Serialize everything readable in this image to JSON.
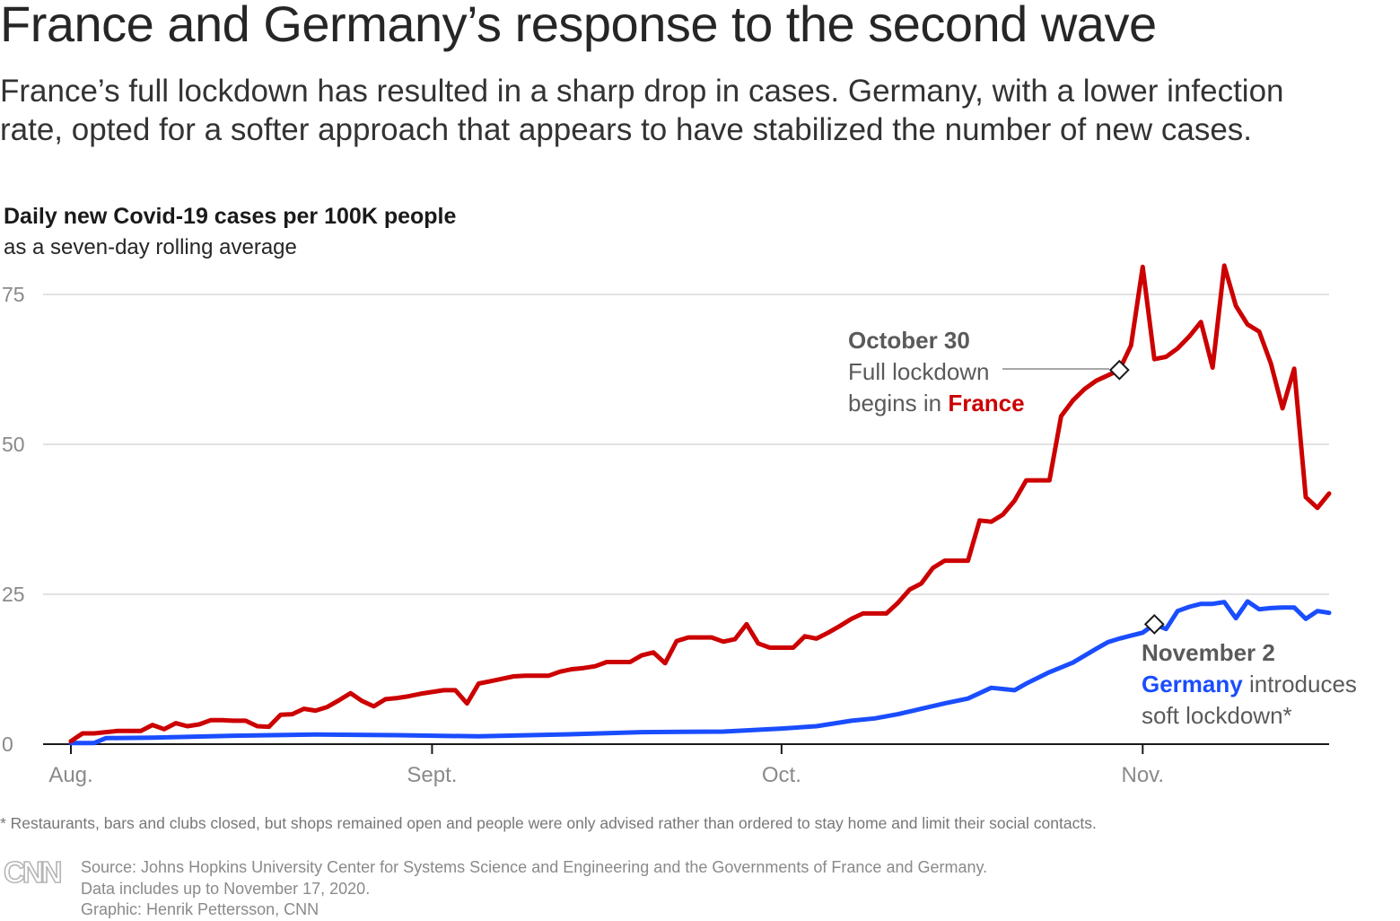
{
  "header": {
    "title": "France and Germany’s response to the second wave",
    "subtitle": "France’s full lockdown has resulted in a sharp drop in cases. Germany, with a lower infection rate, opted for a softer approach that appears to have stabilized the number of new cases."
  },
  "chart_data": {
    "type": "line",
    "title": "Daily new Covid-19 cases per 100K people",
    "subtitle": "as a seven-day rolling average",
    "x_start": "2020-08-01",
    "x_end": "2020-11-17",
    "x_tick_labels": [
      "Aug.",
      "Sept.",
      "Oct.",
      "Nov."
    ],
    "x_tick_dates": [
      "2020-08-01",
      "2020-09-01",
      "2020-10-01",
      "2020-11-01"
    ],
    "y_ticks": [
      0,
      25,
      50,
      75
    ],
    "ylim": [
      0,
      80
    ],
    "grid": true,
    "series": [
      {
        "name": "France",
        "color": "#cc0000",
        "x": [
          "2020-08-01",
          "2020-08-02",
          "2020-08-03",
          "2020-08-04",
          "2020-08-05",
          "2020-08-06",
          "2020-08-07",
          "2020-08-08",
          "2020-08-09",
          "2020-08-10",
          "2020-08-11",
          "2020-08-12",
          "2020-08-13",
          "2020-08-14",
          "2020-08-15",
          "2020-08-16",
          "2020-08-17",
          "2020-08-18",
          "2020-08-19",
          "2020-08-20",
          "2020-08-21",
          "2020-08-22",
          "2020-08-23",
          "2020-08-24",
          "2020-08-25",
          "2020-08-26",
          "2020-08-27",
          "2020-08-28",
          "2020-08-29",
          "2020-08-30",
          "2020-08-31",
          "2020-09-01",
          "2020-09-02",
          "2020-09-03",
          "2020-09-04",
          "2020-09-05",
          "2020-09-06",
          "2020-09-07",
          "2020-09-08",
          "2020-09-09",
          "2020-09-10",
          "2020-09-11",
          "2020-09-12",
          "2020-09-13",
          "2020-09-14",
          "2020-09-15",
          "2020-09-16",
          "2020-09-17",
          "2020-09-18",
          "2020-09-19",
          "2020-09-20",
          "2020-09-21",
          "2020-09-22",
          "2020-09-23",
          "2020-09-24",
          "2020-09-25",
          "2020-09-26",
          "2020-09-27",
          "2020-09-28",
          "2020-09-29",
          "2020-09-30",
          "2020-10-01",
          "2020-10-02",
          "2020-10-03",
          "2020-10-04",
          "2020-10-05",
          "2020-10-06",
          "2020-10-07",
          "2020-10-08",
          "2020-10-09",
          "2020-10-10",
          "2020-10-11",
          "2020-10-12",
          "2020-10-13",
          "2020-10-14",
          "2020-10-15",
          "2020-10-16",
          "2020-10-17",
          "2020-10-18",
          "2020-10-19",
          "2020-10-20",
          "2020-10-21",
          "2020-10-22",
          "2020-10-23",
          "2020-10-24",
          "2020-10-25",
          "2020-10-26",
          "2020-10-27",
          "2020-10-28",
          "2020-10-29",
          "2020-10-30",
          "2020-10-31",
          "2020-11-01",
          "2020-11-02",
          "2020-11-03",
          "2020-11-04",
          "2020-11-05",
          "2020-11-06",
          "2020-11-07",
          "2020-11-08",
          "2020-11-09",
          "2020-11-10",
          "2020-11-11",
          "2020-11-12",
          "2020-11-13",
          "2020-11-14",
          "2020-11-15",
          "2020-11-16",
          "2020-11-17"
        ],
        "values": [
          0.5,
          1.8,
          1.8,
          2.0,
          2.2,
          2.2,
          2.2,
          3.2,
          2.5,
          3.5,
          3.0,
          3.3,
          4.0,
          4.0,
          3.9,
          3.9,
          3.0,
          2.9,
          4.9,
          5.0,
          5.9,
          5.6,
          6.2,
          7.3,
          8.5,
          7.2,
          6.3,
          7.5,
          7.7,
          8.0,
          8.4,
          8.7,
          9.0,
          9.0,
          6.8,
          10.1,
          10.5,
          10.9,
          11.3,
          11.4,
          11.4,
          11.4,
          12.1,
          12.5,
          12.7,
          13.0,
          13.7,
          13.7,
          13.7,
          14.8,
          15.3,
          13.5,
          17.2,
          17.8,
          17.8,
          17.8,
          17.1,
          17.5,
          20.0,
          16.8,
          16.1,
          16.1,
          16.1,
          18.0,
          17.6,
          18.6,
          19.7,
          20.9,
          21.8,
          21.8,
          21.8,
          23.6,
          25.8,
          26.8,
          29.4,
          30.6,
          30.6,
          30.6,
          37.3,
          37.1,
          38.3,
          40.6,
          44.0,
          44.0,
          44.0,
          54.7,
          57.3,
          59.2,
          60.6,
          61.5,
          62.4,
          66.5,
          79.6,
          64.2,
          64.6,
          66.0,
          68.0,
          70.4,
          62.8,
          79.8,
          73.1,
          70.0,
          68.8,
          63.5,
          56.0,
          62.6,
          41.2,
          39.4,
          41.8
        ]
      },
      {
        "name": "Germany",
        "color": "#1a4dff",
        "x": [
          "2020-08-01",
          "2020-08-03",
          "2020-08-04",
          "2020-08-08",
          "2020-08-15",
          "2020-08-22",
          "2020-08-29",
          "2020-09-05",
          "2020-09-12",
          "2020-09-19",
          "2020-09-26",
          "2020-10-01",
          "2020-10-04",
          "2020-10-07",
          "2020-10-09",
          "2020-10-11",
          "2020-10-13",
          "2020-10-15",
          "2020-10-17",
          "2020-10-19",
          "2020-10-21",
          "2020-10-22",
          "2020-10-24",
          "2020-10-26",
          "2020-10-28",
          "2020-10-29",
          "2020-10-30",
          "2020-10-31",
          "2020-11-01",
          "2020-11-02",
          "2020-11-03",
          "2020-11-04",
          "2020-11-05",
          "2020-11-06",
          "2020-11-07",
          "2020-11-08",
          "2020-11-09",
          "2020-11-10",
          "2020-11-11",
          "2020-11-12",
          "2020-11-13",
          "2020-11-14",
          "2020-11-15",
          "2020-11-16",
          "2020-11-17"
        ],
        "values": [
          0.2,
          0.2,
          1.0,
          1.1,
          1.4,
          1.6,
          1.5,
          1.3,
          1.6,
          2.0,
          2.1,
          2.6,
          3.0,
          3.9,
          4.3,
          5.0,
          5.9,
          6.8,
          7.6,
          9.4,
          9.0,
          10.1,
          12.0,
          13.6,
          15.9,
          17.0,
          17.6,
          18.1,
          18.6,
          20.0,
          19.2,
          22.2,
          22.9,
          23.4,
          23.4,
          23.7,
          21.0,
          23.8,
          22.5,
          22.7,
          22.8,
          22.8,
          20.9,
          22.2,
          21.9
        ]
      }
    ],
    "annotations": [
      {
        "date_text": "October 30",
        "line1": "Full lockdown",
        "line2_prefix": "begins in ",
        "line2_country": "France",
        "marker_date": "2020-10-30",
        "marker_value": 62.4
      },
      {
        "date_text": "November 2",
        "line1_country": "Germany",
        "line1_suffix": " introduces",
        "line2": "soft lockdown*",
        "marker_date": "2020-11-02",
        "marker_value": 20.0
      }
    ]
  },
  "footer": {
    "footnote": "* Restaurants, bars and clubs closed, but shops remained open and people were only advised rather than ordered to stay home and limit their social contacts.",
    "source": "Source: Johns Hopkins University Center for Systems Science and Engineering and the Governments of France and Germany.",
    "data_note": "Data includes up to November 17, 2020.",
    "credit": "Graphic: Henrik Pettersson, CNN",
    "logo_text": "CNN"
  }
}
